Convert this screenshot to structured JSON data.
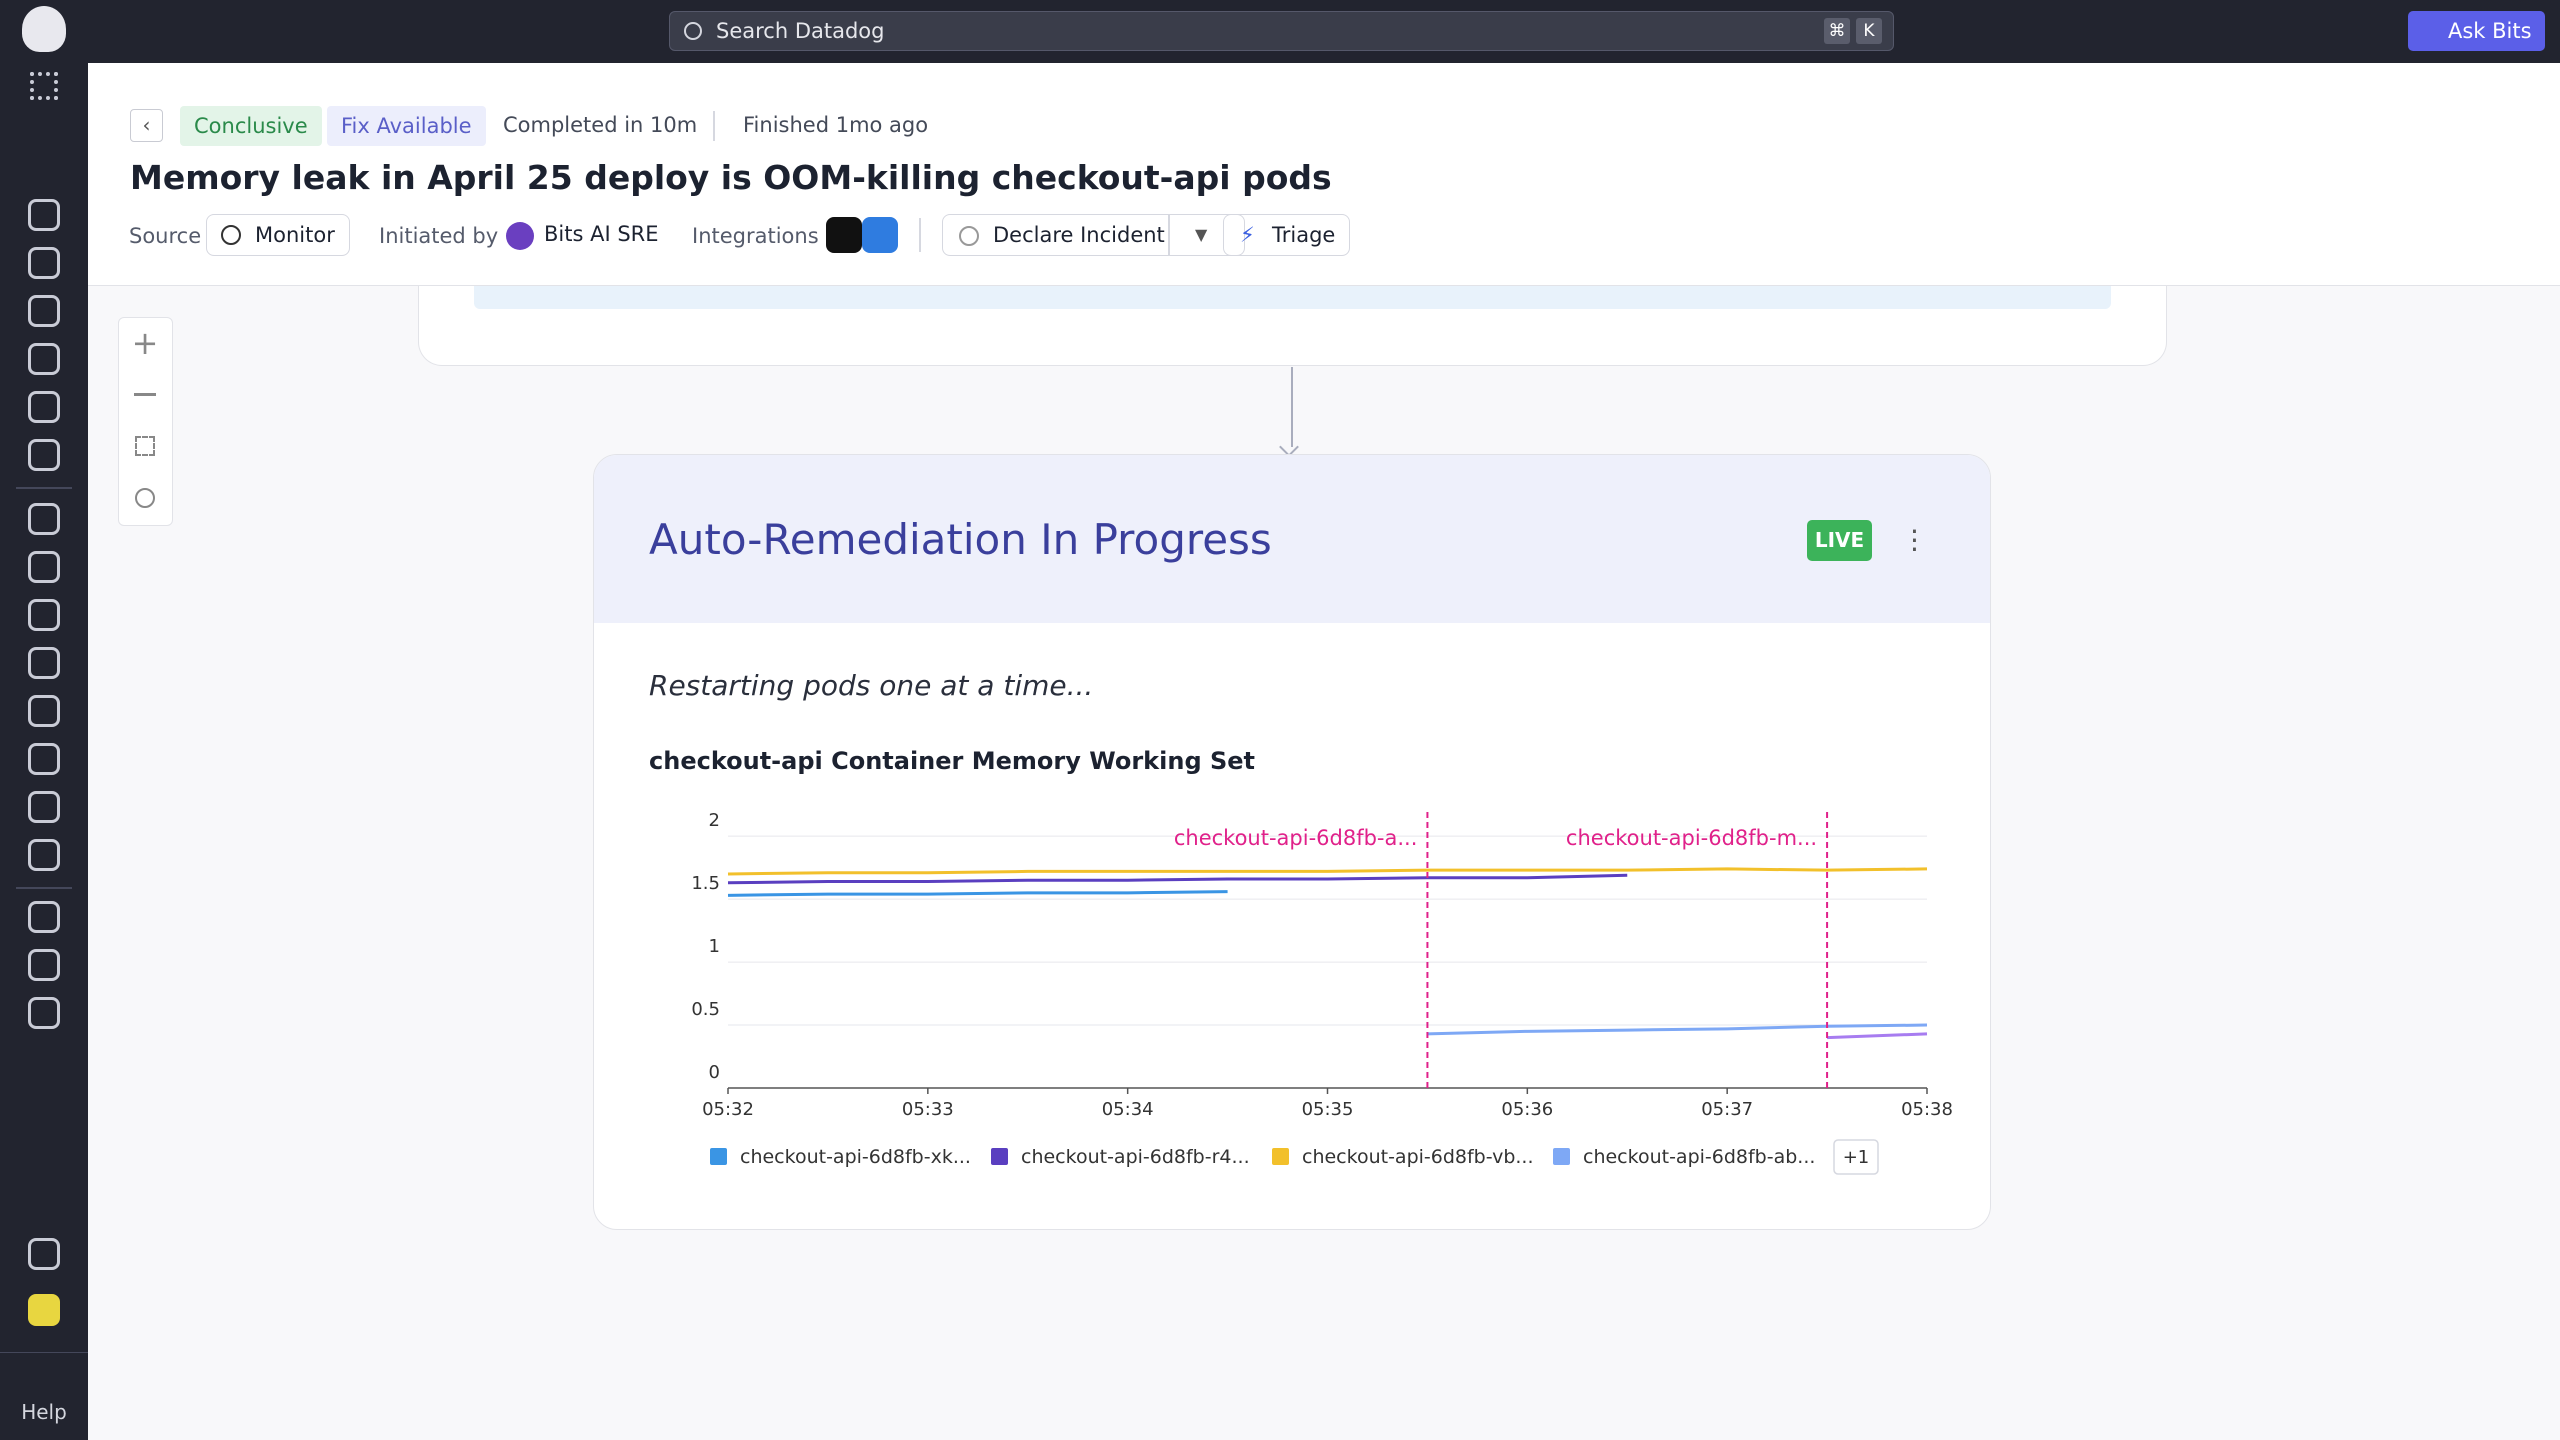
{
  "topbar": {
    "search_placeholder": "Search Datadog",
    "keys": [
      "⌘",
      "K"
    ],
    "ask_button": "Ask Bits"
  },
  "sidebar": {
    "help": "Help"
  },
  "header": {
    "badges": [
      "Conclusive",
      "Fix Available"
    ],
    "completed": "Completed in 10m",
    "finished": "Finished 1mo ago",
    "title": "Memory leak in April 25 deploy is OOM-killing checkout-api pods",
    "source_label": "Source",
    "source": "Monitor",
    "initiated_label": "Initiated by",
    "initiator": "Bits AI SRE",
    "integrations_label": "Integrations",
    "actions": [
      "Declare Incident",
      "Triage"
    ]
  },
  "card": {
    "title": "Auto-Remediation In Progress",
    "status": "LIVE",
    "message": "Restarting pods one at a time..."
  },
  "chart_data": {
    "type": "line",
    "title": "checkout-api Container Memory Working Set",
    "x": [
      332,
      332.5,
      333,
      333.5,
      334,
      334.5,
      335,
      335.5,
      336,
      336.5,
      337,
      337.5,
      338
    ],
    "xlim": [
      332,
      338
    ],
    "xticks": [
      {
        "value": 332,
        "label": "05:32"
      },
      {
        "value": 333,
        "label": "05:33"
      },
      {
        "value": 334,
        "label": "05:34"
      },
      {
        "value": 335,
        "label": "05:35"
      },
      {
        "value": 336,
        "label": "05:36"
      },
      {
        "value": 337,
        "label": "05:37"
      },
      {
        "value": 338,
        "label": "05:38"
      }
    ],
    "ylim": [
      0,
      2.2
    ],
    "yticks": [
      0,
      0.5,
      1,
      1.5,
      2
    ],
    "grid": true,
    "series": [
      {
        "name": "checkout-api-6d8fb-xk...",
        "color": "#3a95e4",
        "values": [
          1.53,
          1.54,
          1.54,
          1.55,
          1.55,
          1.56,
          null,
          null,
          null,
          null,
          null,
          null,
          null
        ]
      },
      {
        "name": "checkout-api-6d8fb-r4...",
        "color": "#5a3fc0",
        "values": [
          1.63,
          1.64,
          1.64,
          1.65,
          1.65,
          1.66,
          1.66,
          1.67,
          1.67,
          1.69,
          null,
          null,
          null
        ]
      },
      {
        "name": "checkout-api-6d8fb-vb...",
        "color": "#f2c02b",
        "values": [
          1.7,
          1.71,
          1.71,
          1.72,
          1.72,
          1.72,
          1.72,
          1.73,
          1.73,
          1.73,
          1.74,
          1.73,
          1.74
        ]
      },
      {
        "name": "checkout-api-6d8fb-ab...",
        "color": "#7ea8f5",
        "values": [
          null,
          null,
          null,
          null,
          null,
          null,
          null,
          0.43,
          0.45,
          0.46,
          0.47,
          0.49,
          0.5
        ]
      },
      {
        "color": "#a77cf0",
        "values": [
          null,
          null,
          null,
          null,
          null,
          null,
          null,
          null,
          null,
          null,
          null,
          0.4,
          0.43
        ]
      }
    ],
    "legend_more": "+1",
    "markers": [
      {
        "x": 335.5,
        "label": "checkout-api-6d8fb-a...",
        "color": "#e0218a"
      },
      {
        "x": 337.5,
        "label": "checkout-api-6d8fb-m...",
        "color": "#e0218a"
      }
    ]
  }
}
